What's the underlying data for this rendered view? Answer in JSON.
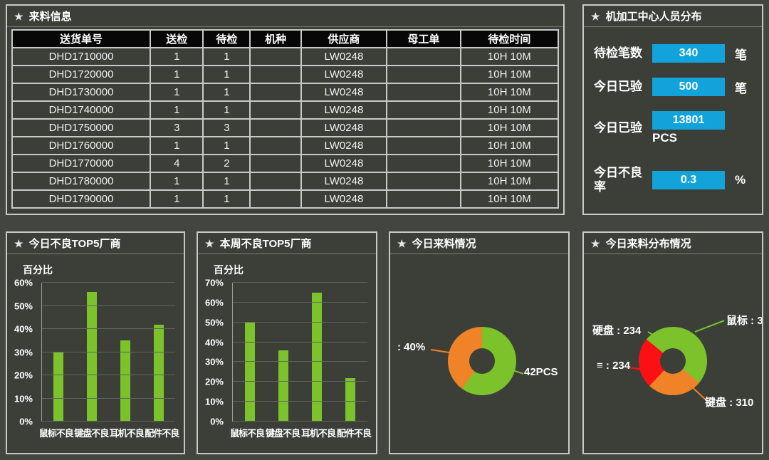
{
  "icons": {
    "star": "★"
  },
  "table_panel": {
    "title": "来料信息",
    "table": {
      "headers": [
        "送货单号",
        "送检",
        "待检",
        "机种",
        "供应商",
        "母工单",
        "待检时间"
      ],
      "rows": [
        [
          "DHD1710000",
          "1",
          "1",
          "",
          "LW0248",
          "",
          "10H 10M"
        ],
        [
          "DHD1720000",
          "1",
          "1",
          "",
          "LW0248",
          "",
          "10H 10M"
        ],
        [
          "DHD1730000",
          "1",
          "1",
          "",
          "LW0248",
          "",
          "10H 10M"
        ],
        [
          "DHD1740000",
          "1",
          "1",
          "",
          "LW0248",
          "",
          "10H 10M"
        ],
        [
          "DHD1750000",
          "3",
          "3",
          "",
          "LW0248",
          "",
          "10H 10M"
        ],
        [
          "DHD1760000",
          "1",
          "1",
          "",
          "LW0248",
          "",
          "10H 10M"
        ],
        [
          "DHD1770000",
          "4",
          "2",
          "",
          "LW0248",
          "",
          "10H 10M"
        ],
        [
          "DHD1780000",
          "1",
          "1",
          "",
          "LW0248",
          "",
          "10H 10M"
        ],
        [
          "DHD1790000",
          "1",
          "1",
          "",
          "LW0248",
          "",
          "10H 10M"
        ]
      ]
    }
  },
  "stats_panel": {
    "title": "机加工中心人员分布",
    "accent_color": "#12a3db",
    "stats": [
      {
        "label": "待检笔数",
        "value": "340",
        "unit": "笔",
        "unit_position": "right"
      },
      {
        "label": "今日已验",
        "value": "500",
        "unit": "笔",
        "unit_position": "right"
      },
      {
        "label": "今日已验",
        "value": "13801",
        "unit": "PCS",
        "unit_position": "below"
      },
      {
        "label": "今日不良率",
        "value": "0.3",
        "unit": "%",
        "unit_position": "right"
      }
    ]
  },
  "chart_data": [
    {
      "type": "bar",
      "title": "今日不良TOP5厂商",
      "ylabel": "百分比",
      "categories": [
        "鼠标不良",
        "键盘不良",
        "耳机不良",
        "配件不良"
      ],
      "values": [
        30,
        56,
        35,
        42
      ],
      "ylim": [
        0,
        60
      ],
      "tick_labels": [
        "0%",
        "10%",
        "20%",
        "30%",
        "40%",
        "50%",
        "60%"
      ],
      "bar_color": "#7cc32b",
      "grid": true,
      "legend": "none"
    },
    {
      "type": "bar",
      "title": "本周不良TOP5厂商",
      "ylabel": "百分比",
      "categories": [
        "鼠标不良",
        "键盘不良",
        "耳机不良",
        "配件不良"
      ],
      "values": [
        50,
        36,
        65,
        22
      ],
      "ylim": [
        0,
        70
      ],
      "tick_labels": [
        "0%",
        "10%",
        "20%",
        "30%",
        "40%",
        "50%",
        "60%",
        "70%"
      ],
      "bar_color": "#7cc32b",
      "grid": true,
      "legend": "none"
    },
    {
      "type": "pie",
      "title": "今日来料情况",
      "donut": true,
      "slices": [
        {
          "label": "42PCS",
          "value": 60,
          "color": "#7cc32b"
        },
        {
          "label": ": 40%",
          "value": 40,
          "color": "#f08228"
        }
      ]
    },
    {
      "type": "pie",
      "title": "今日来料分布情况",
      "donut": true,
      "slices": [
        {
          "label": "鼠标 : 3",
          "value": 36,
          "color": "#7cc32b"
        },
        {
          "label": "键盘 : 310",
          "value": 26,
          "color": "#f08228"
        },
        {
          "label": "≡ : 234",
          "value": 24,
          "color": "#fd1014"
        },
        {
          "label": "硬盘 : 234",
          "value": 14,
          "color": "#7cc32b"
        }
      ]
    }
  ]
}
